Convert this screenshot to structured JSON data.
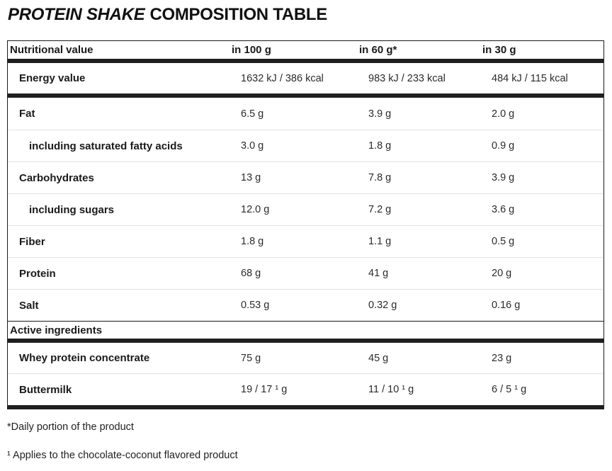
{
  "title": {
    "product": "PROTEIN SHAKE",
    "suffix": "COMPOSITION TABLE"
  },
  "table": {
    "header": {
      "label": "Nutritional value",
      "columns": [
        "in 100 g",
        "in 60 g*",
        "in 30 g"
      ]
    },
    "rows": [
      {
        "label": "Energy value",
        "values": [
          "1632 kJ / 386 kcal",
          "983 kJ / 233 kcal",
          "484 kJ / 115 kcal"
        ]
      },
      {
        "label": "Fat",
        "values": [
          "6.5 g",
          "3.9 g",
          "2.0 g"
        ]
      },
      {
        "label": "including saturated fatty acids",
        "values": [
          "3.0 g",
          "1.8 g",
          "0.9 g"
        ]
      },
      {
        "label": "Carbohydrates",
        "values": [
          "13 g",
          "7.8 g",
          "3.9 g"
        ]
      },
      {
        "label": "including sugars",
        "values": [
          "12.0 g",
          "7.2 g",
          "3.6 g"
        ]
      },
      {
        "label": "Fiber",
        "values": [
          "1.8 g",
          "1.1 g",
          "0.5 g"
        ]
      },
      {
        "label": "Protein",
        "values": [
          "68 g",
          "41 g",
          "20 g"
        ]
      },
      {
        "label": "Salt",
        "values": [
          "0.53 g",
          "0.32 g",
          "0.16 g"
        ]
      }
    ],
    "section_header": "Active ingredients",
    "active_rows": [
      {
        "label": "Whey protein concentrate",
        "values": [
          "75 g",
          "45 g",
          "23 g"
        ]
      },
      {
        "label": "Buttermilk",
        "values": [
          "19 / 17 ¹ g",
          "11 / 10 ¹ g",
          "6 / 5 ¹ g"
        ]
      }
    ]
  },
  "footnotes": [
    "*Daily portion of the product",
    "¹ Applies to the chocolate-coconut flavored product"
  ],
  "colors": {
    "text": "#1a1a1a",
    "separator_bar": "#1f1f1f",
    "row_divider": "#e2e2e2"
  }
}
